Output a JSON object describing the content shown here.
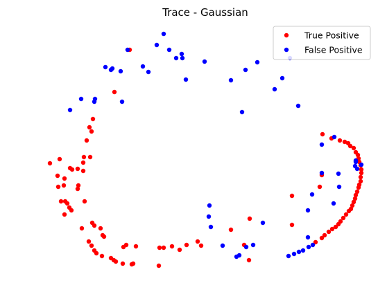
{
  "chart_data": {
    "type": "scatter",
    "title": "Trace - Gaussian",
    "xlabel": "",
    "ylabel": "",
    "axes_visible": false,
    "grid": false,
    "legend_position": "top-right",
    "series": [
      {
        "name": "True Positive",
        "color": "#ff0000",
        "points": [
          [
            187,
            72
          ],
          [
            165,
            133
          ],
          [
            129,
            184
          ],
          [
            134,
            172
          ],
          [
            132,
            190
          ],
          [
            125,
            203
          ],
          [
            121,
            227
          ],
          [
            130,
            227
          ],
          [
            120,
            235
          ],
          [
            112,
            244
          ],
          [
            120,
            247
          ],
          [
            72,
            236
          ],
          [
            86,
            230
          ],
          [
            101,
            243
          ],
          [
            104,
            245
          ],
          [
            83,
            254
          ],
          [
            93,
            258
          ],
          [
            84,
            270
          ],
          [
            92,
            268
          ],
          [
            113,
            268
          ],
          [
            112,
            273
          ],
          [
            88,
            291
          ],
          [
            94,
            291
          ],
          [
            97,
            294
          ],
          [
            100,
            300
          ],
          [
            122,
            291
          ],
          [
            103,
            304
          ],
          [
            93,
            310
          ],
          [
            133,
            322
          ],
          [
            136,
            326
          ],
          [
            145,
            330
          ],
          [
            148,
            340
          ],
          [
            150,
            342
          ],
          [
            118,
            330
          ],
          [
            128,
            349
          ],
          [
            132,
            355
          ],
          [
            136,
            362
          ],
          [
            139,
            366
          ],
          [
            147,
            370
          ],
          [
            160,
            373
          ],
          [
            164,
            376
          ],
          [
            167,
            378
          ],
          [
            177,
            381
          ],
          [
            190,
            382
          ],
          [
            192,
            381
          ],
          [
            178,
            357
          ],
          [
            182,
            354
          ],
          [
            196,
            356
          ],
          [
            230,
            358
          ],
          [
            236,
            358
          ],
          [
            229,
            384
          ],
          [
            248,
            356
          ],
          [
            259,
            361
          ],
          [
            269,
            354
          ],
          [
            285,
            349
          ],
          [
            290,
            355
          ],
          [
            333,
            332
          ],
          [
            352,
            354
          ],
          [
            360,
            316
          ],
          [
            359,
            376
          ],
          [
            421,
            283
          ],
          [
            421,
            325
          ],
          [
            465,
            194
          ],
          [
            464,
            253
          ],
          [
            461,
            270
          ],
          [
            478,
            200
          ],
          [
            490,
            203
          ],
          [
            497,
            205
          ],
          [
            502,
            207
          ],
          [
            505,
            211
          ],
          [
            510,
            214
          ],
          [
            513,
            220
          ],
          [
            516,
            224
          ],
          [
            517,
            229
          ],
          [
            518,
            234
          ],
          [
            520,
            239
          ],
          [
            521,
            245
          ],
          [
            521,
            250
          ],
          [
            520,
            256
          ],
          [
            520,
            262
          ],
          [
            518,
            267
          ],
          [
            517,
            271
          ],
          [
            515,
            277
          ],
          [
            513,
            282
          ],
          [
            512,
            287
          ],
          [
            510,
            292
          ],
          [
            508,
            297
          ],
          [
            506,
            302
          ],
          [
            503,
            305
          ],
          [
            499,
            310
          ],
          [
            495,
            315
          ],
          [
            491,
            320
          ],
          [
            488,
            324
          ],
          [
            484,
            328
          ],
          [
            479,
            331
          ],
          [
            474,
            335
          ],
          [
            468,
            340
          ],
          [
            464,
            344
          ],
          [
            455,
            350
          ]
        ]
      },
      {
        "name": "False Positive",
        "color": "#0000ff",
        "points": [
          [
            184,
            72
          ],
          [
            236,
            49
          ],
          [
            226,
            65
          ],
          [
            244,
            72
          ],
          [
            254,
            84
          ],
          [
            262,
            78
          ],
          [
            263,
            84
          ],
          [
            206,
            96
          ],
          [
            214,
            104
          ],
          [
            152,
            97
          ],
          [
            160,
            101
          ],
          [
            162,
            99
          ],
          [
            174,
            103
          ],
          [
            295,
            89
          ],
          [
            268,
            115
          ],
          [
            333,
            116
          ],
          [
            354,
            101
          ],
          [
            371,
            90
          ],
          [
            407,
            113
          ],
          [
            396,
            129
          ],
          [
            418,
            84
          ],
          [
            430,
            153
          ],
          [
            349,
            162
          ],
          [
            176,
            147
          ],
          [
            136,
            147
          ],
          [
            137,
            143
          ],
          [
            117,
            143
          ],
          [
            101,
            159
          ],
          [
            302,
            297
          ],
          [
            301,
            313
          ],
          [
            304,
            328
          ],
          [
            321,
            355
          ],
          [
            341,
            371
          ],
          [
            345,
            369
          ],
          [
            355,
            357
          ],
          [
            365,
            354
          ],
          [
            379,
            322
          ],
          [
            416,
            370
          ],
          [
            424,
            367
          ],
          [
            431,
            364
          ],
          [
            437,
            362
          ],
          [
            445,
            357
          ],
          [
            451,
            354
          ],
          [
            444,
            343
          ],
          [
            444,
            304
          ],
          [
            450,
            281
          ],
          [
            489,
            270
          ],
          [
            481,
            294
          ],
          [
            488,
            251
          ],
          [
            464,
            250
          ],
          [
            513,
            232
          ],
          [
            512,
            240
          ],
          [
            513,
            234
          ],
          [
            515,
            244
          ],
          [
            521,
            238
          ],
          [
            482,
            198
          ],
          [
            464,
            209
          ]
        ]
      }
    ]
  }
}
